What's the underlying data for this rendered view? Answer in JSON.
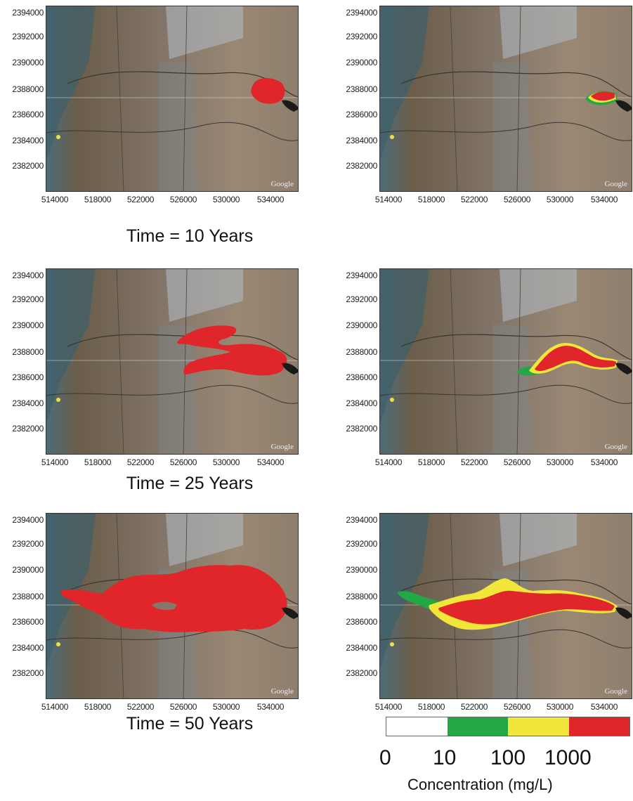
{
  "y_ticks": [
    "2394000",
    "2392000",
    "2390000",
    "2388000",
    "2386000",
    "2384000",
    "2382000"
  ],
  "x_ticks": [
    "514000",
    "518000",
    "522000",
    "526000",
    "530000",
    "534000"
  ],
  "watermark": "Google",
  "rows": [
    {
      "time_label": "Time = 10 Years"
    },
    {
      "time_label": "Time = 25 Years"
    },
    {
      "time_label": "Time = 50 Years"
    }
  ],
  "legend": {
    "colors": [
      "#ffffff",
      "#22a845",
      "#f2e63a",
      "#e0262b"
    ],
    "labels": [
      "0",
      "10",
      "100",
      "1000"
    ],
    "title": "Concentration (mg/L)"
  }
}
